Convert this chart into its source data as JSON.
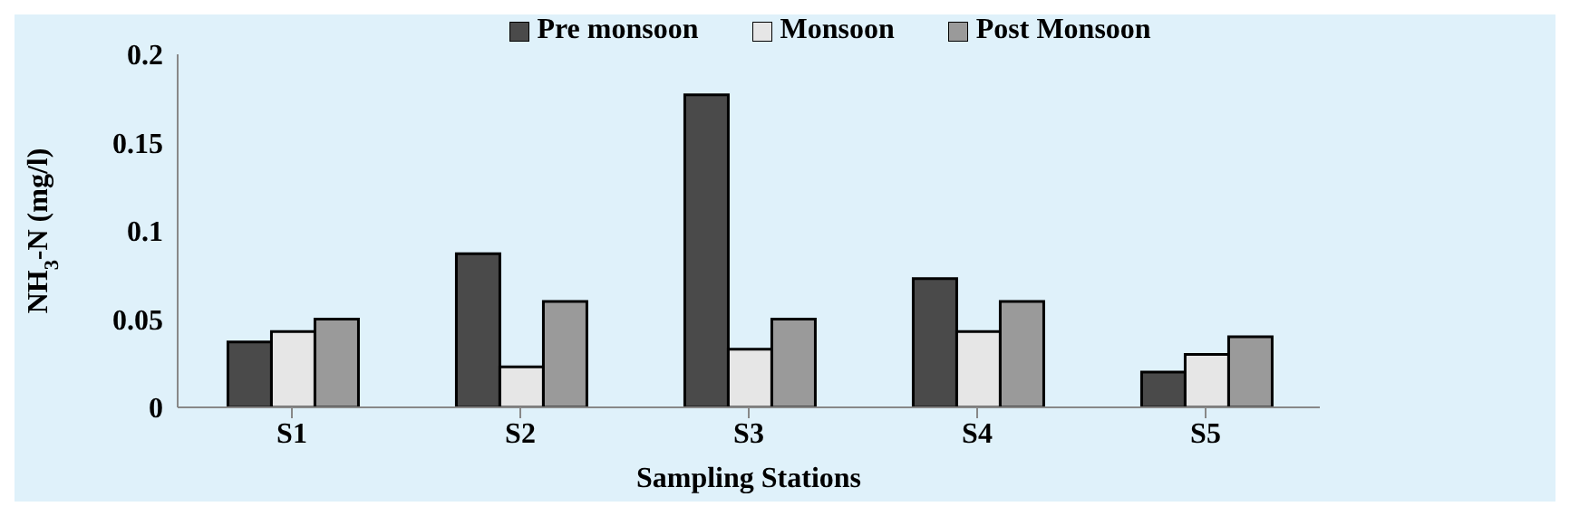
{
  "chart_data": {
    "type": "bar",
    "xlabel": "Sampling Stations",
    "ylabel": "NH$_{3}$-N (mg/l)",
    "categories": [
      "S1",
      "S2",
      "S3",
      "S4",
      "S5"
    ],
    "series": [
      {
        "name": "Pre monsoon",
        "color": "#4a4a4a",
        "values": [
          0.037,
          0.087,
          0.177,
          0.073,
          0.02
        ]
      },
      {
        "name": "Monsoon",
        "color": "#e6e6e6",
        "values": [
          0.043,
          0.023,
          0.033,
          0.043,
          0.03
        ]
      },
      {
        "name": "Post Monsoon",
        "color": "#9a9a9a",
        "values": [
          0.05,
          0.06,
          0.05,
          0.06,
          0.04
        ]
      }
    ],
    "ylim": [
      0,
      0.2
    ],
    "yticks": [
      0,
      0.05,
      0.1,
      0.15,
      0.2
    ],
    "grid": false,
    "legend": "top"
  }
}
